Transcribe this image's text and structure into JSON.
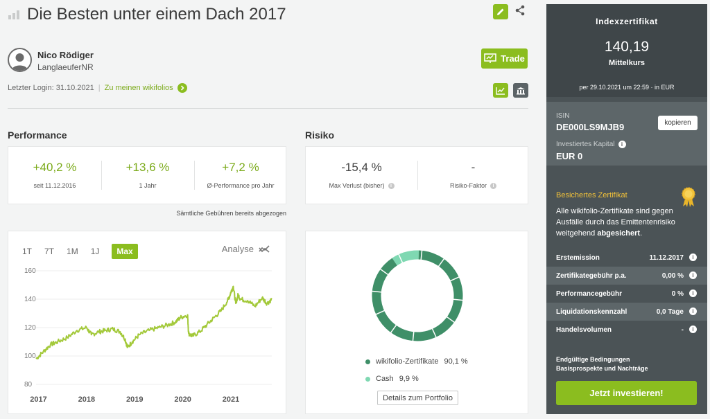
{
  "header": {
    "title": "Die Besten unter einem Dach 2017",
    "trade_label": "Trade"
  },
  "user": {
    "name": "Nico Rödiger",
    "handle": "LanglaeuferNR",
    "last_login": "Letzter Login: 31.10.2021",
    "separator": "|",
    "wikifolios_link": "Zu meinen wikifolios"
  },
  "performance": {
    "title": "Performance",
    "items": [
      {
        "value": "+40,2 %",
        "label": "seit 11.12.2016"
      },
      {
        "value": "+13,6 %",
        "label": "1 Jahr"
      },
      {
        "value": "+7,2 %",
        "label": "Ø-Performance pro Jahr"
      }
    ],
    "fees_note": "Sämtliche Gebühren bereits abgezogen"
  },
  "risk": {
    "title": "Risiko",
    "items": [
      {
        "value": "-15,4 %",
        "label": "Max Verlust (bisher)"
      },
      {
        "value": "-",
        "label": "Risiko-Faktor"
      }
    ]
  },
  "chart": {
    "tabs": [
      "1T",
      "7T",
      "1M",
      "1J",
      "Max"
    ],
    "active_tab": "Max",
    "analyse_label": "Analyse"
  },
  "chart_data": {
    "type": "line",
    "line_color": "#a3c93a",
    "grid": true,
    "ylim": [
      80,
      160
    ],
    "y_ticks": [
      80,
      100,
      120,
      140,
      160
    ],
    "x_ticks": [
      "2017",
      "2018",
      "2019",
      "2020",
      "2021"
    ],
    "xlim": [
      2016.95,
      2021.85
    ],
    "series": [
      {
        "x": [
          2016.95,
          2017.1,
          2017.25,
          2017.4,
          2017.6,
          2017.8,
          2018.0,
          2018.1,
          2018.25,
          2018.4,
          2018.55,
          2018.7,
          2018.8,
          2018.85,
          2018.95,
          2019.1,
          2019.3,
          2019.5,
          2019.7,
          2019.85,
          2019.95,
          2020.1,
          2020.12,
          2020.2,
          2020.35,
          2020.5,
          2020.65,
          2020.8,
          2020.95,
          2021.0,
          2021.05,
          2021.1,
          2021.15,
          2021.2,
          2021.35,
          2021.5,
          2021.65,
          2021.75,
          2021.85
        ],
        "y": [
          98,
          103,
          108,
          110,
          113,
          118,
          120,
          115,
          117,
          118,
          119,
          117,
          112,
          106,
          110,
          115,
          118,
          120,
          122,
          124,
          127,
          129,
          116,
          114,
          117,
          122,
          127,
          132,
          140,
          145,
          149,
          137,
          143,
          140,
          139,
          135,
          141,
          137,
          140
        ]
      }
    ]
  },
  "portfolio": {
    "slices": [
      {
        "name": "wikifolio-Zertifikate",
        "label": "90,1 %",
        "value": 90.1,
        "color": "#3f8f68"
      },
      {
        "name": "Cash",
        "label": "9,9 %",
        "value": 9.9,
        "color": "#7fd8b2"
      }
    ],
    "details_label": "Details zum Portfolio"
  },
  "panel": {
    "title": "Indexzertifikat",
    "price": "140,19",
    "price_label": "Mittelkurs",
    "timestamp": "per 29.10.2021 um 22:59 · in EUR",
    "isin_label": "ISIN",
    "isin": "DE000LS9MJB9",
    "copy_label": "kopieren",
    "capital_label": "Investiertes Kapital",
    "capital": "EUR 0",
    "secured_title": "Besichertes Zertifikat",
    "secured_text_1": "Alle wikifolio-Zertifikate sind gegen Ausfälle durch das Emittentenrisiko weitgehend ",
    "secured_text_2": "abgesichert",
    "secured_text_3": ".",
    "rows": [
      {
        "key": "Erstemission",
        "value": "11.12.2017"
      },
      {
        "key": "Zertifikategebühr p.a.",
        "value": "0,00 %"
      },
      {
        "key": "Performancegebühr",
        "value": "0 %"
      },
      {
        "key": "Liquidationskennzahl",
        "value": "0,0 Tage"
      },
      {
        "key": "Handelsvolumen",
        "value": "-"
      }
    ],
    "link_1": "Endgültige Bedingungen",
    "link_2": "Basisprospekte und Nachträge",
    "invest_label": "Jetzt investieren!"
  },
  "colors": {
    "accent": "#8bbd1f",
    "panel_dark": "#3f4649",
    "panel_mid": "#4b5356",
    "gold": "#f2c23a"
  }
}
